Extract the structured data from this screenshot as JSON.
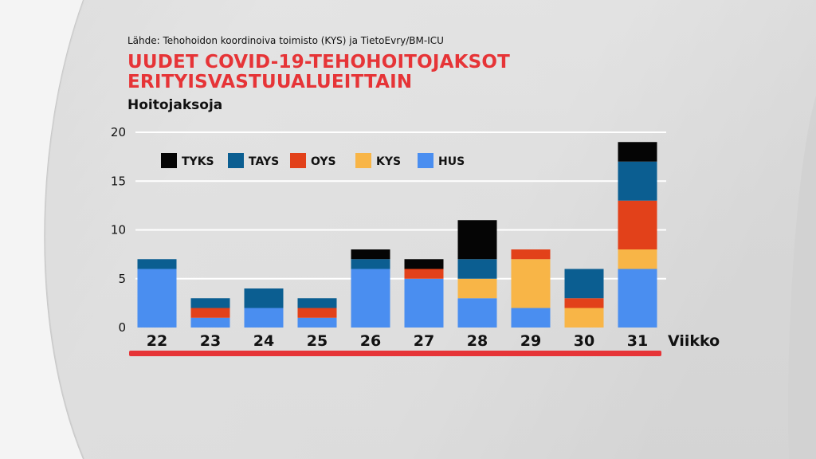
{
  "source": "Lähde: Tehohoidon koordinoiva toimisto (KYS) ja TietoEvry/BM-ICU",
  "title_line1": "UUDET COVID-19-TEHOHOITOJAKSOT",
  "title_line2": "ERITYISVASTUUALUEITTAIN",
  "chart_data": {
    "type": "bar",
    "stacked": true,
    "title": "UUDET COVID-19-TEHOHOITOJAKSOT ERITYISVASTUUALUEITTAIN",
    "ylabel": "Hoitojaksoja",
    "xlabel": "Viikko",
    "ylim": [
      0,
      20
    ],
    "yticks": [
      0,
      5,
      10,
      15,
      20
    ],
    "grid": true,
    "legend_position": "top-left",
    "categories": [
      "22",
      "23",
      "24",
      "25",
      "26",
      "27",
      "28",
      "29",
      "30",
      "31"
    ],
    "series": [
      {
        "name": "HUS",
        "color": "#4a8ef0",
        "values": [
          6,
          1,
          2,
          1,
          6,
          5,
          3,
          2,
          0,
          6
        ]
      },
      {
        "name": "KYS",
        "color": "#f8b547",
        "values": [
          0,
          0,
          0,
          0,
          0,
          0,
          2,
          5,
          2,
          2
        ]
      },
      {
        "name": "OYS",
        "color": "#e2411a",
        "values": [
          0,
          1,
          0,
          1,
          0,
          1,
          0,
          1,
          1,
          5
        ]
      },
      {
        "name": "TAYS",
        "color": "#0b5e91",
        "values": [
          1,
          1,
          2,
          1,
          1,
          0,
          2,
          0,
          3,
          4
        ]
      },
      {
        "name": "TYKS",
        "color": "#050505",
        "values": [
          0,
          0,
          0,
          0,
          1,
          1,
          4,
          0,
          0,
          2
        ]
      }
    ],
    "legend_order": [
      "TYKS",
      "TAYS",
      "OYS",
      "KYS",
      "HUS"
    ],
    "accent_line_color": "#e63437"
  }
}
